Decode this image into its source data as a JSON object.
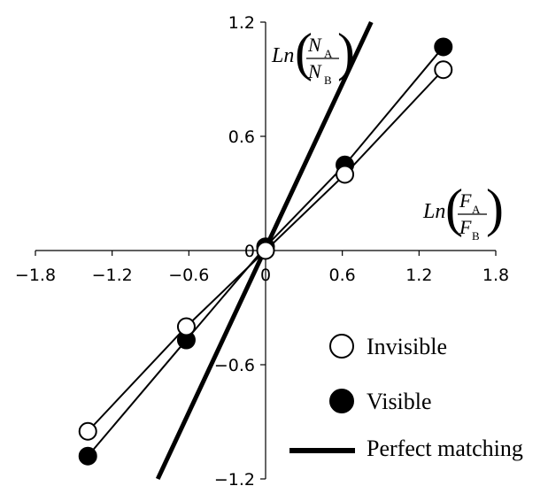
{
  "chart_data": {
    "type": "scatter",
    "x_axis": {
      "range": [
        -1.8,
        1.8
      ],
      "ticks": [
        -1.8,
        -1.2,
        -0.6,
        0,
        0.6,
        1.2,
        1.8
      ],
      "tick_labels": [
        "−1.8",
        "−1.2",
        "−0.6",
        "0",
        "0.6",
        "1.2",
        "1.8"
      ],
      "label": {
        "prefix": "Ln",
        "numerator": "F",
        "numerator_sub": "A",
        "denominator": "F",
        "denominator_sub": "B"
      }
    },
    "y_axis": {
      "range": [
        -1.2,
        1.2
      ],
      "ticks": [
        -1.2,
        -0.6,
        0,
        0.6,
        1.2
      ],
      "tick_labels": [
        "−1.2",
        "−0.6",
        "0",
        "0.6",
        "1.2"
      ],
      "label": {
        "prefix": "Ln",
        "numerator": "N",
        "numerator_sub": "A",
        "denominator": "N",
        "denominator_sub": "B"
      }
    },
    "grid": false,
    "legend_position": "bottom-right",
    "series": [
      {
        "name": "Invisible",
        "marker": "open-circle",
        "color": "#000000",
        "fill": "#ffffff",
        "points": [
          [
            -1.39,
            -0.95
          ],
          [
            -0.62,
            -0.4
          ],
          [
            0,
            0
          ],
          [
            0.62,
            0.4
          ],
          [
            1.39,
            0.95
          ]
        ]
      },
      {
        "name": "Visible",
        "marker": "filled-circle",
        "color": "#000000",
        "fill": "#000000",
        "points": [
          [
            -1.39,
            -1.08
          ],
          [
            -0.62,
            -0.47
          ],
          [
            0,
            0.02
          ],
          [
            0.62,
            0.45
          ],
          [
            1.39,
            1.07
          ]
        ]
      },
      {
        "name": "Perfect matching",
        "marker": "line",
        "color": "#000000",
        "line": [
          [
            -0.843,
            -1.2
          ],
          [
            0.826,
            1.2
          ]
        ]
      }
    ]
  }
}
